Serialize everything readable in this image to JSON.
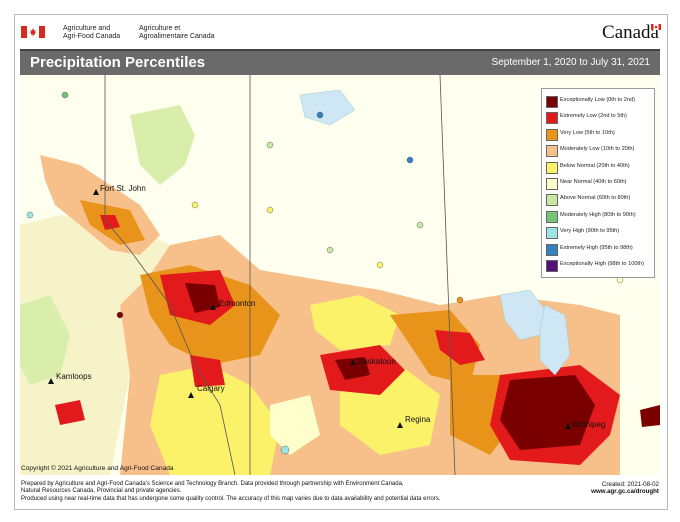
{
  "header": {
    "agency_en_line1": "Agriculture and",
    "agency_en_line2": "Agri-Food Canada",
    "agency_fr_line1": "Agriculture et",
    "agency_fr_line2": "Agroalimentaire Canada",
    "wordmark": "Canada"
  },
  "title": "Precipitation Percentiles",
  "date_range": "September 1, 2020 to July 31, 2021",
  "legend": [
    {
      "label": "Exceptionally Low (0th to 2nd)",
      "color": "#7a0000"
    },
    {
      "label": "Extremely Low (2nd to 5th)",
      "color": "#e31a1c"
    },
    {
      "label": "Very Low (5th to 10th)",
      "color": "#e8931a"
    },
    {
      "label": "Moderately Low (10th to 20th)",
      "color": "#f7c08a"
    },
    {
      "label": "Below Normal (20th to 40th)",
      "color": "#fbf26a"
    },
    {
      "label": "Near Normal (40th to 60th)",
      "color": "#ffffcc"
    },
    {
      "label": "Above Normal (60th to 80th)",
      "color": "#c7e9a0"
    },
    {
      "label": "Moderately High (80th to 90th)",
      "color": "#74c476"
    },
    {
      "label": "Very High (90th to 95th)",
      "color": "#9ee6e6"
    },
    {
      "label": "Extremely High (95th to 98th)",
      "color": "#3182bd"
    },
    {
      "label": "Exceptionally High (98th to 100th)",
      "color": "#54107a"
    }
  ],
  "cities": {
    "fort_st_john": "Fort St. John",
    "edmonton": "Edmonton",
    "kamloops": "Kamloops",
    "calgary": "Calgary",
    "saskatoon": "Saskatoon",
    "regina": "Regina",
    "winnipeg": "Winnipeg"
  },
  "copyright": "Copyright © 2021 Agriculture and Agri-Food Canada",
  "footer": {
    "line1": "Prepared by Agriculture and Agri-Food Canada's Science and Technology Branch. Data provided through partnership with Environment Canada,",
    "line2": "Natural Resources Canada, Provincial and private agencies.",
    "line3": "Produced using near real-time data that has undergone some quality control. The accuracy of this map varies due to data availability and potential data errors."
  },
  "created": "Created: 2021-08-02",
  "url": "www.agr.gc.ca/drought"
}
